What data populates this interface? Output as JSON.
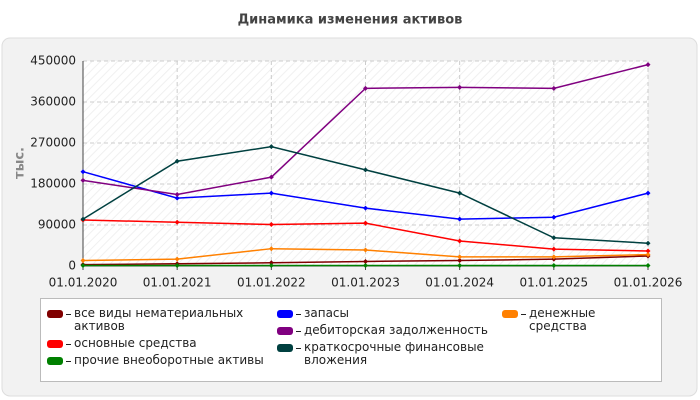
{
  "chart_data": {
    "type": "line",
    "title": "Динамика изменения активов",
    "y_label": "тыс.",
    "categories": [
      "01.01.2020",
      "01.01.2021",
      "01.01.2022",
      "01.01.2023",
      "01.01.2024",
      "01.01.2025",
      "01.01.2026"
    ],
    "ylim": [
      0,
      450000
    ],
    "yticks": [
      0,
      90000,
      180000,
      270000,
      360000,
      450000
    ],
    "grid": true,
    "series": [
      {
        "name": "все виды нематериальных активов",
        "color": "#800000",
        "values": [
          3000,
          5000,
          7000,
          10000,
          12000,
          15000,
          22000
        ]
      },
      {
        "name": "основные средства",
        "color": "#ff0000",
        "values": [
          101000,
          96000,
          91000,
          94000,
          55000,
          37000,
          33000
        ]
      },
      {
        "name": "прочие внеоборотные активы",
        "color": "#008000",
        "values": [
          1000,
          1000,
          1000,
          1000,
          1000,
          1000,
          1000
        ]
      },
      {
        "name": "запасы",
        "color": "#0000ff",
        "values": [
          207000,
          149000,
          160000,
          127000,
          103000,
          107000,
          160000
        ]
      },
      {
        "name": "дебиторская задолженность",
        "color": "#800080",
        "values": [
          188000,
          157000,
          195000,
          390000,
          392000,
          390000,
          442000
        ]
      },
      {
        "name": "краткосрочные финансовые вложения",
        "color": "#004040",
        "values": [
          103000,
          230000,
          262000,
          211000,
          160000,
          62000,
          50000
        ]
      },
      {
        "name": "денежные средства",
        "color": "#ff8000",
        "values": [
          12000,
          15000,
          38000,
          35000,
          20000,
          20000,
          25000
        ]
      }
    ]
  }
}
